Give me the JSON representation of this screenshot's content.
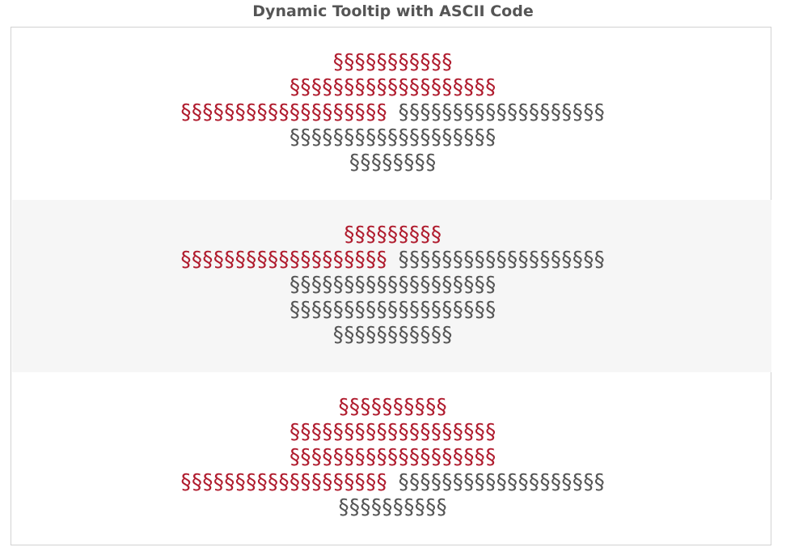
{
  "title": "Dynamic Tooltip with ASCII Code",
  "colors": {
    "accent_red": "#b01c2e",
    "text_gray": "#555555",
    "stripe": "#f6f6f6",
    "border": "#d2d2d2"
  },
  "rows": [
    {
      "lines": [
        [
          {
            "text": "§§§§§§§§§§§",
            "color": "red"
          }
        ],
        [
          {
            "text": "§§§§§§§§§§§§§§§§§§§",
            "color": "red"
          }
        ],
        [
          {
            "text": "§§§§§§§§§§§§§§§§§§§",
            "color": "red"
          },
          {
            "text": " ",
            "color": "gray"
          },
          {
            "text": "§§§§§§§§§§§§§§§§§§§",
            "color": "gray"
          }
        ],
        [
          {
            "text": "§§§§§§§§§§§§§§§§§§§",
            "color": "gray"
          }
        ],
        [
          {
            "text": "§§§§§§§§",
            "color": "gray"
          }
        ]
      ]
    },
    {
      "lines": [
        [
          {
            "text": "§§§§§§§§§",
            "color": "red"
          }
        ],
        [
          {
            "text": "§§§§§§§§§§§§§§§§§§§",
            "color": "red"
          },
          {
            "text": " ",
            "color": "gray"
          },
          {
            "text": "§§§§§§§§§§§§§§§§§§§",
            "color": "gray"
          }
        ],
        [
          {
            "text": "§§§§§§§§§§§§§§§§§§§",
            "color": "gray"
          }
        ],
        [
          {
            "text": "§§§§§§§§§§§§§§§§§§§",
            "color": "gray"
          }
        ],
        [
          {
            "text": "§§§§§§§§§§§",
            "color": "gray"
          }
        ]
      ]
    },
    {
      "lines": [
        [
          {
            "text": "§§§§§§§§§§",
            "color": "red"
          }
        ],
        [
          {
            "text": "§§§§§§§§§§§§§§§§§§§",
            "color": "red"
          }
        ],
        [
          {
            "text": "§§§§§§§§§§§§§§§§§§§",
            "color": "red"
          }
        ],
        [
          {
            "text": "§§§§§§§§§§§§§§§§§§§",
            "color": "red"
          },
          {
            "text": " ",
            "color": "gray"
          },
          {
            "text": "§§§§§§§§§§§§§§§§§§§",
            "color": "gray"
          }
        ],
        [
          {
            "text": "§§§§§§§§§§",
            "color": "gray"
          }
        ]
      ]
    }
  ]
}
